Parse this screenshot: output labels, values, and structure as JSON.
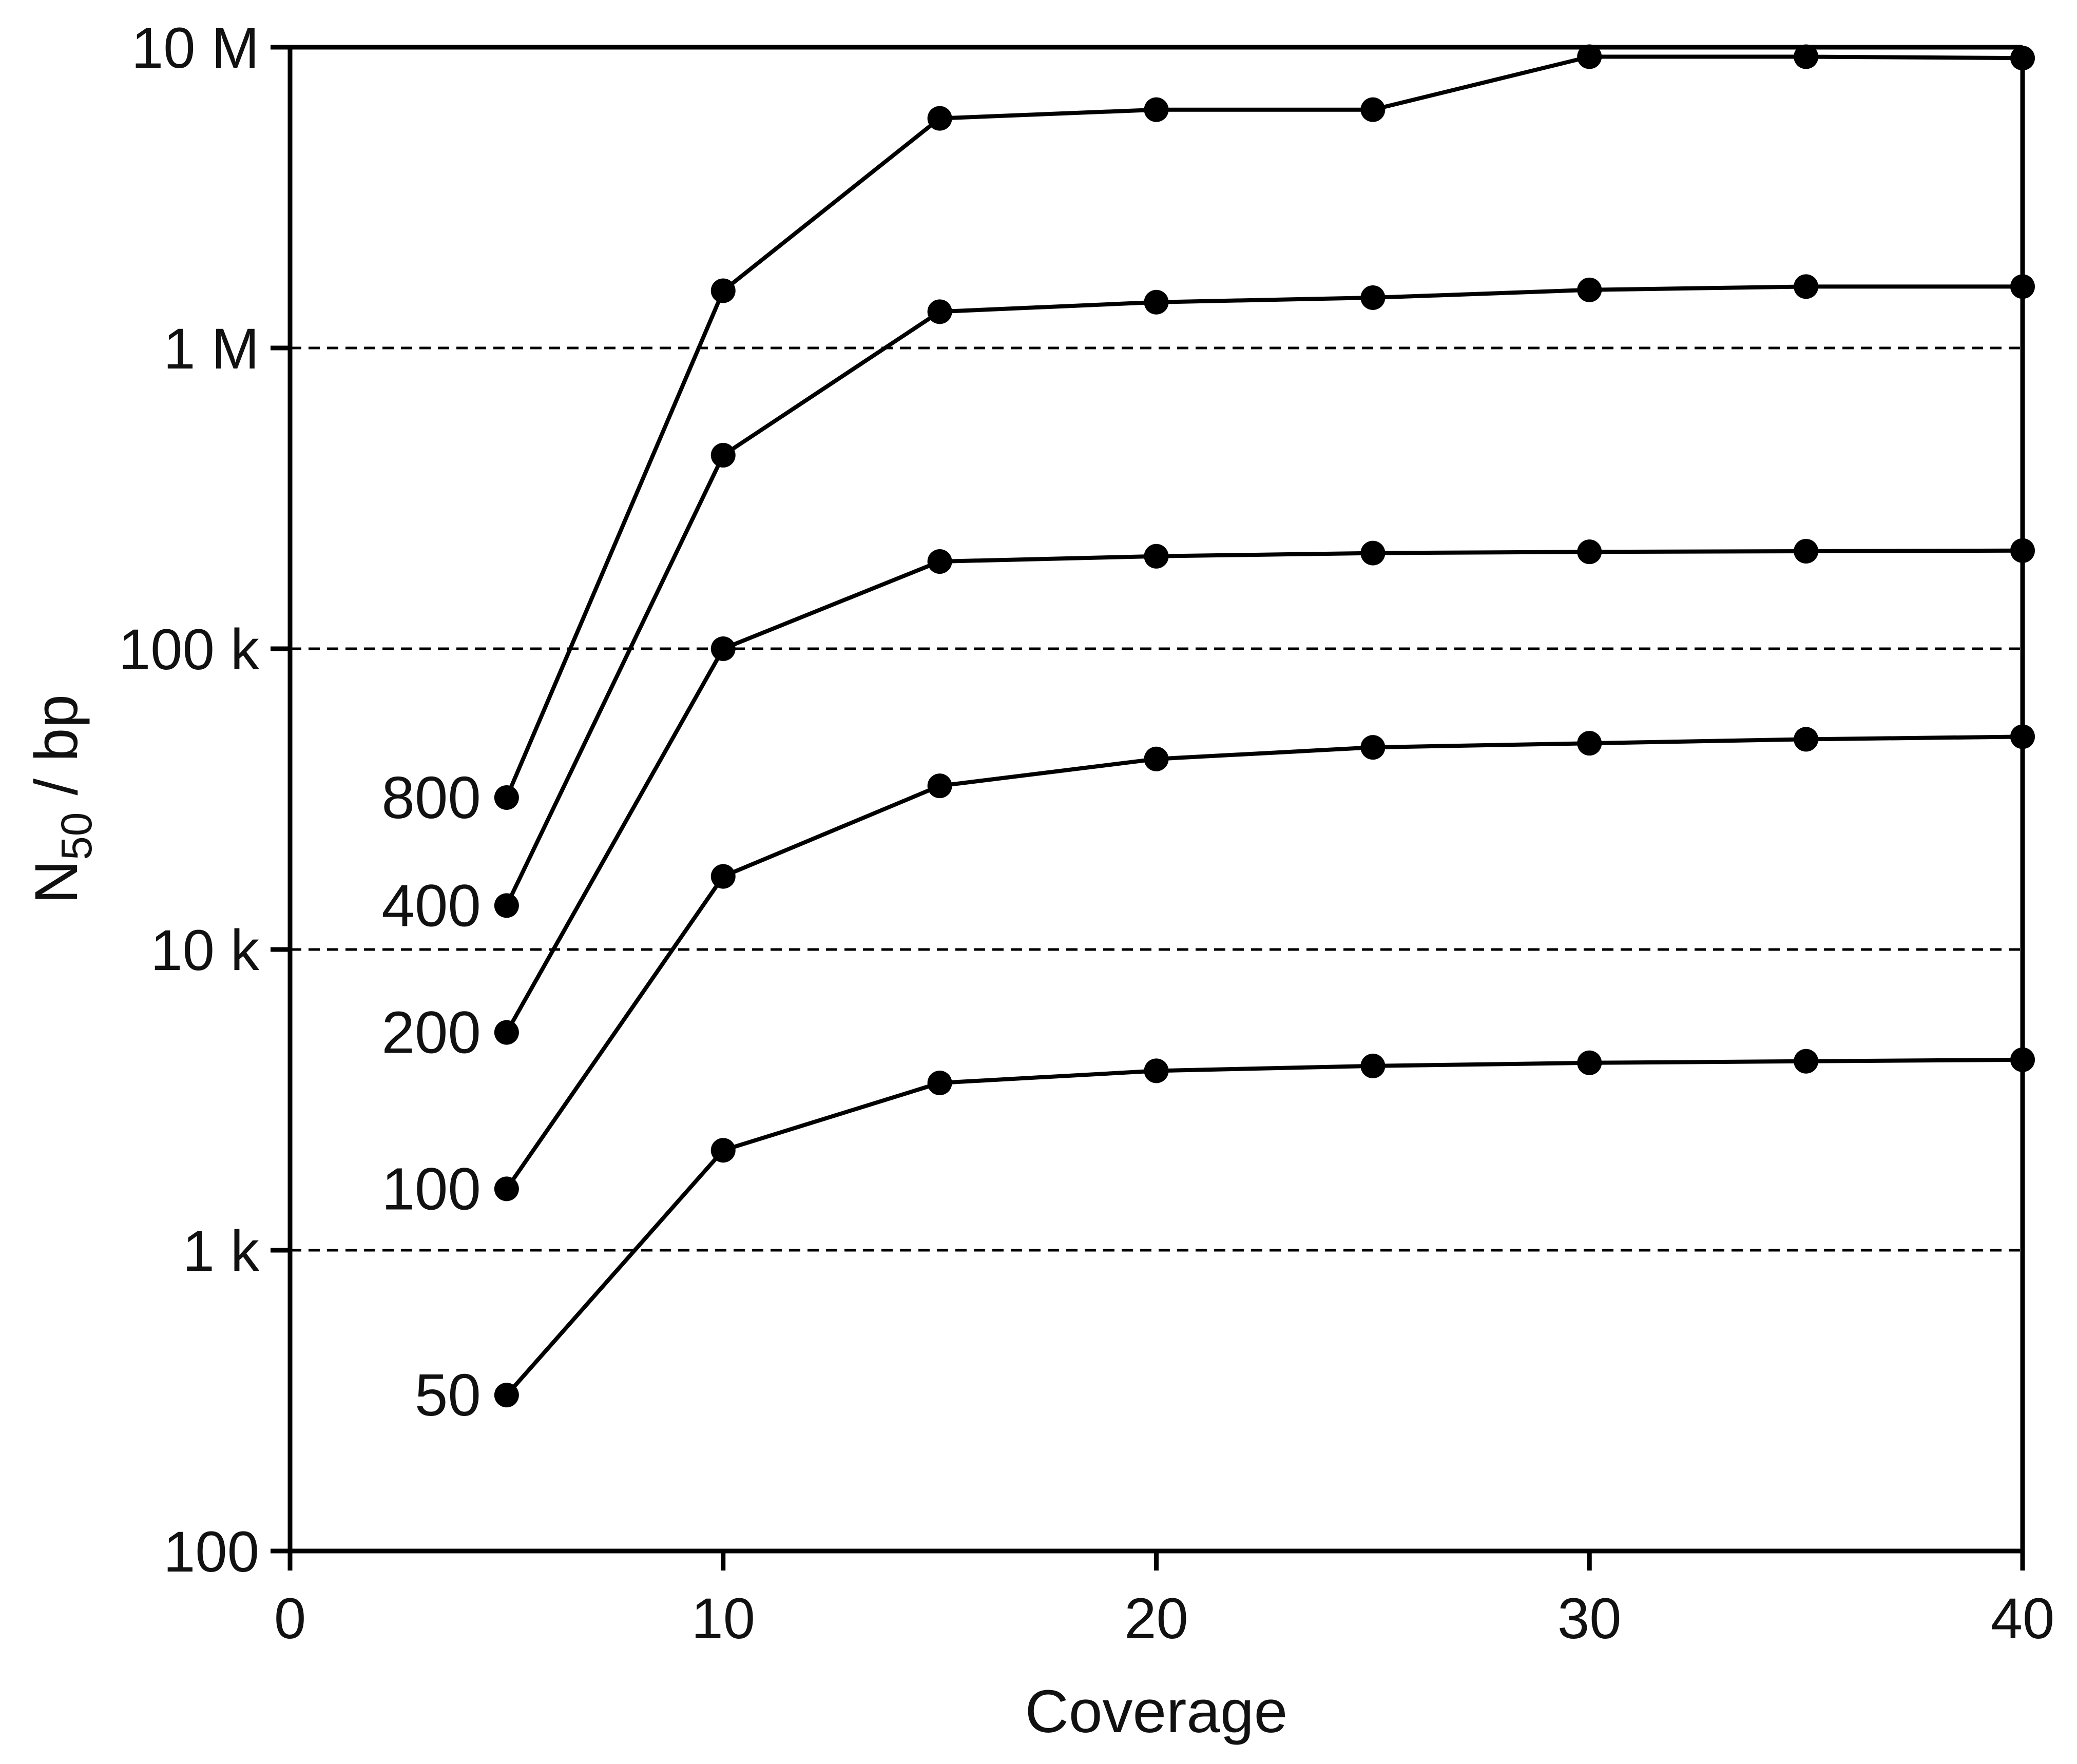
{
  "chart_data": {
    "type": "line",
    "title": "",
    "xlabel": "Coverage",
    "ylabel_main": "N",
    "ylabel_sub": "50",
    "ylabel_rest": " / bp",
    "xlim": [
      0,
      40
    ],
    "ylim": [
      100,
      10000000
    ],
    "y_scale": "log",
    "x_ticks": [
      0,
      10,
      20,
      30,
      40
    ],
    "x_tick_labels": [
      "0",
      "10",
      "20",
      "30",
      "40"
    ],
    "y_ticks": [
      100,
      1000,
      10000,
      100000,
      1000000,
      10000000
    ],
    "y_tick_labels": [
      "100",
      "1 k",
      "10 k",
      "100 k",
      "1 M",
      "10 M"
    ],
    "grid": "horizontal dashed at 1 k, 10 k, 100 k, 1 M",
    "legend": "none; series labels printed at left of each line",
    "colors": {
      "line": "#000000",
      "marker": "#000000",
      "grid": "#000000"
    },
    "x": [
      5,
      10,
      15,
      20,
      25,
      30,
      35,
      40
    ],
    "series": [
      {
        "name": "800",
        "values": [
          32000,
          1550000,
          5800000,
          6200000,
          6200000,
          9300000,
          9300000,
          9200000
        ]
      },
      {
        "name": "400",
        "values": [
          14000,
          440000,
          1320000,
          1420000,
          1470000,
          1560000,
          1600000,
          1600000
        ]
      },
      {
        "name": "200",
        "values": [
          5300,
          100000,
          195000,
          203000,
          208000,
          210000,
          211000,
          212000
        ]
      },
      {
        "name": "100",
        "values": [
          1600,
          17500,
          35000,
          43000,
          47000,
          48500,
          50000,
          51000
        ]
      },
      {
        "name": "50",
        "values": [
          330,
          2150,
          3600,
          3950,
          4100,
          4200,
          4250,
          4300
        ]
      }
    ]
  }
}
